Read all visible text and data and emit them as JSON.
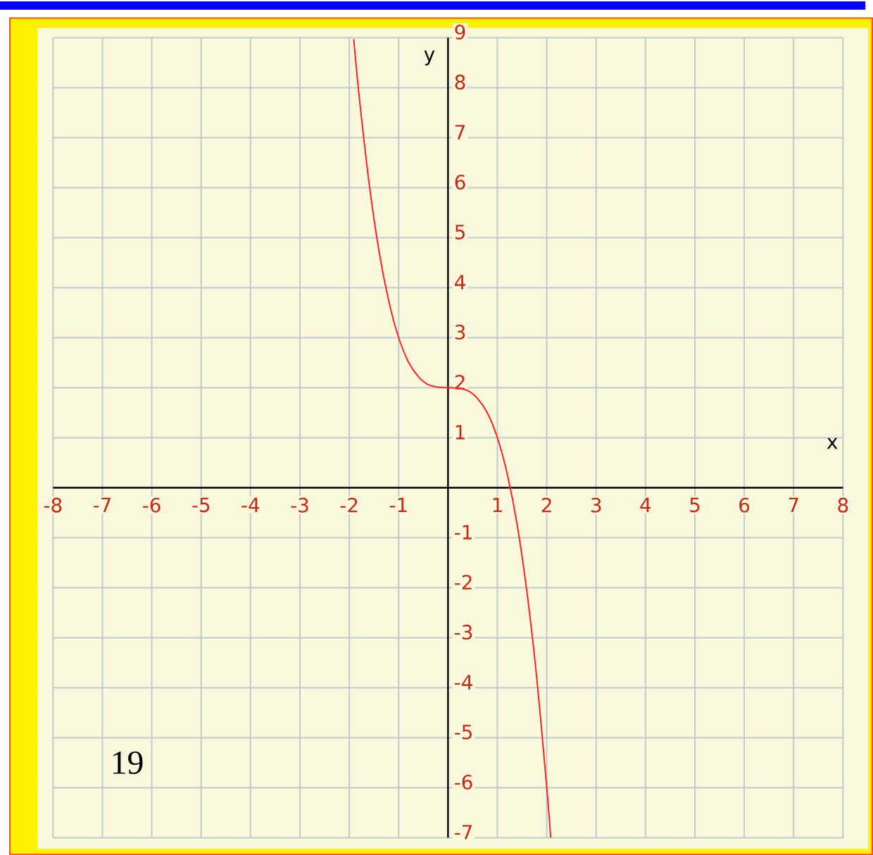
{
  "chart_data": {
    "type": "line",
    "xlabel": "x",
    "ylabel": "y",
    "annotations": [
      "19"
    ],
    "series": [
      {
        "color": "#ff2020",
        "x": [
          -1.91,
          -1.8,
          -1.6,
          -1.4,
          -1.2,
          -1.0,
          -0.8,
          -0.6,
          -0.4,
          -0.2,
          0,
          0.2,
          0.4,
          0.6,
          0.8,
          1.0,
          1.2,
          1.4,
          1.6,
          1.8,
          2.0,
          2.08
        ],
        "values": [
          8.97,
          7.83,
          6.1,
          4.74,
          3.73,
          3.0,
          2.51,
          2.22,
          2.06,
          2.01,
          2,
          1.99,
          1.94,
          1.78,
          1.49,
          1.0,
          0.27,
          -0.74,
          -2.1,
          -3.83,
          -6.0,
          -7.0
        ]
      }
    ],
    "xlim": [
      -8,
      8
    ],
    "ylim": [
      -7,
      9
    ],
    "xticks": [
      -8,
      -7,
      -6,
      -5,
      -4,
      -3,
      -2,
      -1,
      1,
      2,
      3,
      4,
      5,
      6,
      7,
      8
    ],
    "yticks": [
      -7,
      -6,
      -5,
      -4,
      -3,
      -2,
      -1,
      1,
      2,
      3,
      4,
      5,
      6,
      7,
      8,
      9
    ],
    "grid": true,
    "marker": "none",
    "line_style": "solid"
  }
}
